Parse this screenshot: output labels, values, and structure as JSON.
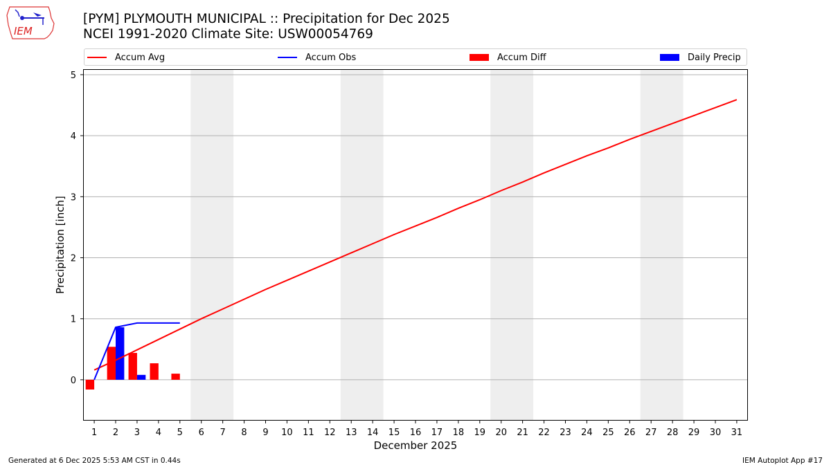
{
  "header": {
    "title_line1": "[PYM] PLYMOUTH MUNICIPAL :: Precipitation for Dec 2025",
    "title_line2": "NCEI 1991-2020 Climate Site: USW00054769",
    "logo_text": "IEM"
  },
  "legend": {
    "items": [
      {
        "label": "Accum Avg",
        "kind": "line",
        "color": "#ff0000"
      },
      {
        "label": "Accum Obs",
        "kind": "line",
        "color": "#0000ff"
      },
      {
        "label": "Accum Diff",
        "kind": "patch",
        "color": "#ff0000"
      },
      {
        "label": "Daily Precip",
        "kind": "patch",
        "color": "#0000ff"
      }
    ]
  },
  "footer": {
    "generated": "Generated at 6 Dec 2025 5:53 AM CST in 0.44s",
    "app": "IEM Autoplot App #17"
  },
  "chart_data": {
    "type": "line",
    "title": "[PYM] PLYMOUTH MUNICIPAL :: Precipitation for Dec 2025",
    "subtitle": "NCEI 1991-2020 Climate Site: USW00054769",
    "xlabel": "December 2025",
    "ylabel": "Precipitation [inch]",
    "x": [
      1,
      2,
      3,
      4,
      5,
      6,
      7,
      8,
      9,
      10,
      11,
      12,
      13,
      14,
      15,
      16,
      17,
      18,
      19,
      20,
      21,
      22,
      23,
      24,
      25,
      26,
      27,
      28,
      29,
      30,
      31
    ],
    "xlim": [
      0.48,
      31.52
    ],
    "ylim": [
      -0.67,
      5.09
    ],
    "yticks": [
      0,
      1,
      2,
      3,
      4,
      5
    ],
    "grid": "y",
    "legend_position": "top",
    "weekend_shading": [
      [
        5.5,
        7.5
      ],
      [
        12.5,
        14.5
      ],
      [
        19.5,
        21.5
      ],
      [
        26.5,
        28.5
      ]
    ],
    "series": [
      {
        "name": "Accum Avg",
        "type": "line",
        "color": "#ff0000",
        "values": [
          0.16,
          0.32,
          0.49,
          0.66,
          0.83,
          1.0,
          1.16,
          1.32,
          1.48,
          1.63,
          1.78,
          1.93,
          2.08,
          2.23,
          2.38,
          2.52,
          2.66,
          2.81,
          2.95,
          3.1,
          3.24,
          3.39,
          3.53,
          3.67,
          3.8,
          3.94,
          4.07,
          4.2,
          4.33,
          4.46,
          4.59
        ]
      },
      {
        "name": "Accum Obs",
        "type": "line",
        "color": "#0000ff",
        "values": [
          0.0,
          0.86,
          0.93,
          0.93,
          0.93
        ]
      },
      {
        "name": "Accum Diff",
        "type": "bar",
        "color": "#ff0000",
        "values": [
          -0.16,
          0.54,
          0.44,
          0.27,
          0.1
        ]
      },
      {
        "name": "Daily Precip",
        "type": "bar",
        "color": "#0000ff",
        "values": [
          0.0,
          0.86,
          0.08,
          0.0,
          0.0
        ]
      }
    ]
  }
}
